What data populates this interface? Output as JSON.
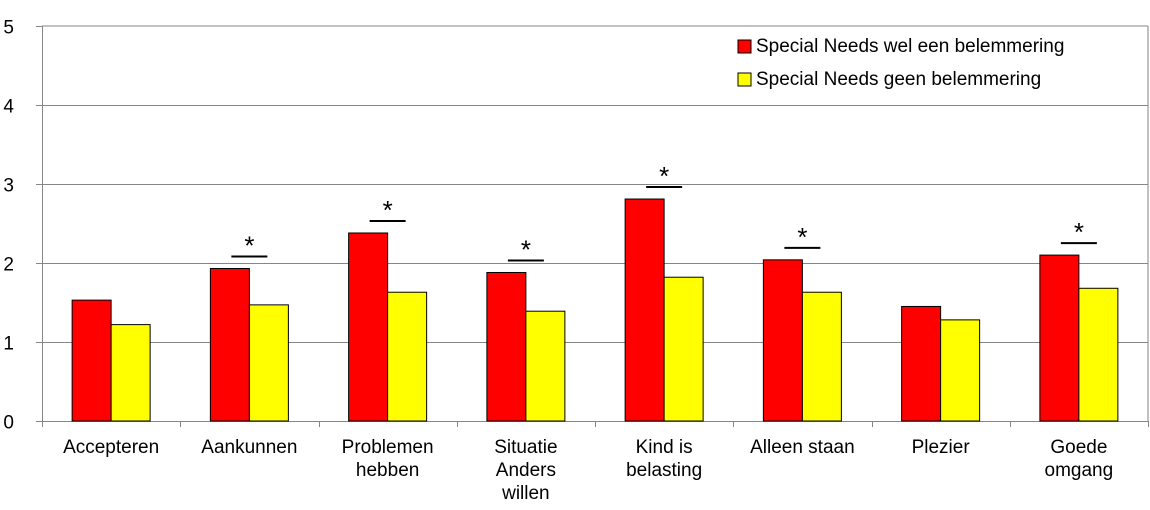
{
  "chart_data": {
    "type": "bar",
    "categories": [
      [
        "Accepteren"
      ],
      [
        "Aankunnen"
      ],
      [
        "Problemen",
        "hebben"
      ],
      [
        "Situatie",
        "Anders",
        "willen"
      ],
      [
        "Kind is",
        "belasting"
      ],
      [
        "Alleen staan"
      ],
      [
        "Plezier"
      ],
      [
        "Goede",
        "omgang"
      ]
    ],
    "series": [
      {
        "name": "Special Needs wel een belemmering",
        "color": "#ff0000",
        "values": [
          1.53,
          1.93,
          2.38,
          1.88,
          2.81,
          2.04,
          1.45,
          2.1
        ]
      },
      {
        "name": "Special Needs geen belemmering",
        "color": "#ffff00",
        "values": [
          1.22,
          1.47,
          1.63,
          1.39,
          1.82,
          1.63,
          1.28,
          1.68
        ]
      }
    ],
    "significance": [
      "",
      "*",
      "*",
      "*",
      "*",
      "*",
      "",
      "*"
    ],
    "ylim": [
      0,
      5
    ],
    "yticks": [
      0,
      1,
      2,
      3,
      4,
      5
    ],
    "grid": true,
    "legend_position": "top-right"
  }
}
